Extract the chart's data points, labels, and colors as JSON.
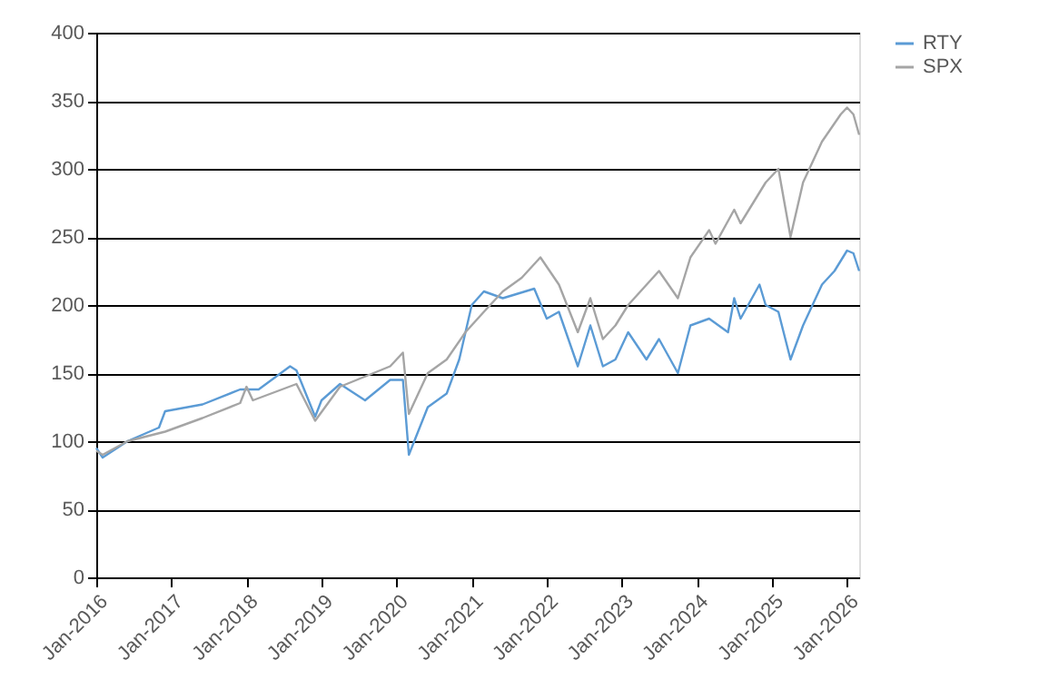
{
  "chart_data": {
    "type": "line",
    "x": [
      "2016-01",
      "2016-02",
      "2016-06",
      "2016-11",
      "2016-12",
      "2017-06",
      "2017-12",
      "2018-03",
      "2018-08",
      "2018-09",
      "2018-12",
      "2019-01",
      "2019-04",
      "2019-08",
      "2019-12",
      "2020-02",
      "2020-03",
      "2020-06",
      "2020-09",
      "2020-11",
      "2021-01",
      "2021-03",
      "2021-06",
      "2021-11",
      "2022-01",
      "2022-03",
      "2022-06",
      "2022-08",
      "2022-10",
      "2022-12",
      "2023-02",
      "2023-05",
      "2023-07",
      "2023-10",
      "2023-12",
      "2024-03",
      "2024-06",
      "2024-07",
      "2024-08",
      "2024-11",
      "2024-12",
      "2025-02",
      "2025-04",
      "2025-06",
      "2025-09",
      "2025-11",
      "2026-01",
      "2026-02",
      "2026-03"
    ],
    "series": [
      {
        "name": "RTY",
        "color": "#5b9bd5",
        "values": [
          95,
          88,
          100,
          110,
          122,
          127,
          138,
          138,
          155,
          152,
          118,
          130,
          142,
          130,
          145,
          145,
          90,
          125,
          135,
          160,
          200,
          210,
          205,
          212,
          190,
          195,
          155,
          185,
          155,
          160,
          180,
          160,
          175,
          150,
          185,
          190,
          180,
          205,
          190,
          215,
          200,
          195,
          160,
          185,
          215,
          225,
          240,
          238,
          225
        ]
      },
      {
        "name": "SPX",
        "color": "#a5a5a5",
        "x": [
          "2016-01",
          "2016-02",
          "2016-06",
          "2016-12",
          "2017-06",
          "2017-12",
          "2018-01",
          "2018-02",
          "2018-09",
          "2018-12",
          "2019-04",
          "2019-12",
          "2020-02",
          "2020-03",
          "2020-06",
          "2020-09",
          "2020-12",
          "2021-03",
          "2021-06",
          "2021-09",
          "2021-12",
          "2022-03",
          "2022-06",
          "2022-08",
          "2022-10",
          "2022-12",
          "2023-02",
          "2023-07",
          "2023-10",
          "2023-12",
          "2024-03",
          "2024-04",
          "2024-07",
          "2024-08",
          "2024-12",
          "2025-02",
          "2025-04",
          "2025-06",
          "2025-09",
          "2025-12",
          "2026-01",
          "2026-02",
          "2026-03"
        ],
        "values": [
          93,
          90,
          100,
          107,
          117,
          128,
          140,
          130,
          142,
          115,
          140,
          155,
          165,
          120,
          150,
          160,
          180,
          195,
          210,
          220,
          235,
          215,
          180,
          205,
          175,
          185,
          200,
          225,
          205,
          235,
          255,
          245,
          270,
          260,
          290,
          300,
          250,
          290,
          320,
          340,
          345,
          340,
          325
        ]
      }
    ],
    "xlim": [
      "2016-01",
      "2026-03"
    ],
    "xticks": [
      {
        "value": "2016-01",
        "label": "Jan-2016"
      },
      {
        "value": "2017-01",
        "label": "Jan-2017"
      },
      {
        "value": "2018-01",
        "label": "Jan-2018"
      },
      {
        "value": "2019-01",
        "label": "Jan-2019"
      },
      {
        "value": "2020-01",
        "label": "Jan-2020"
      },
      {
        "value": "2021-01",
        "label": "Jan-2021"
      },
      {
        "value": "2022-01",
        "label": "Jan-2022"
      },
      {
        "value": "2023-01",
        "label": "Jan-2023"
      },
      {
        "value": "2024-01",
        "label": "Jan-2024"
      },
      {
        "value": "2025-01",
        "label": "Jan-2025"
      },
      {
        "value": "2026-01",
        "label": "Jan-2026"
      }
    ],
    "ylim": [
      0,
      400
    ],
    "yticks": [
      0,
      50,
      100,
      150,
      200,
      250,
      300,
      350,
      400
    ],
    "grid": "y",
    "legend": "right",
    "marker": "none",
    "line_style": "solid"
  }
}
